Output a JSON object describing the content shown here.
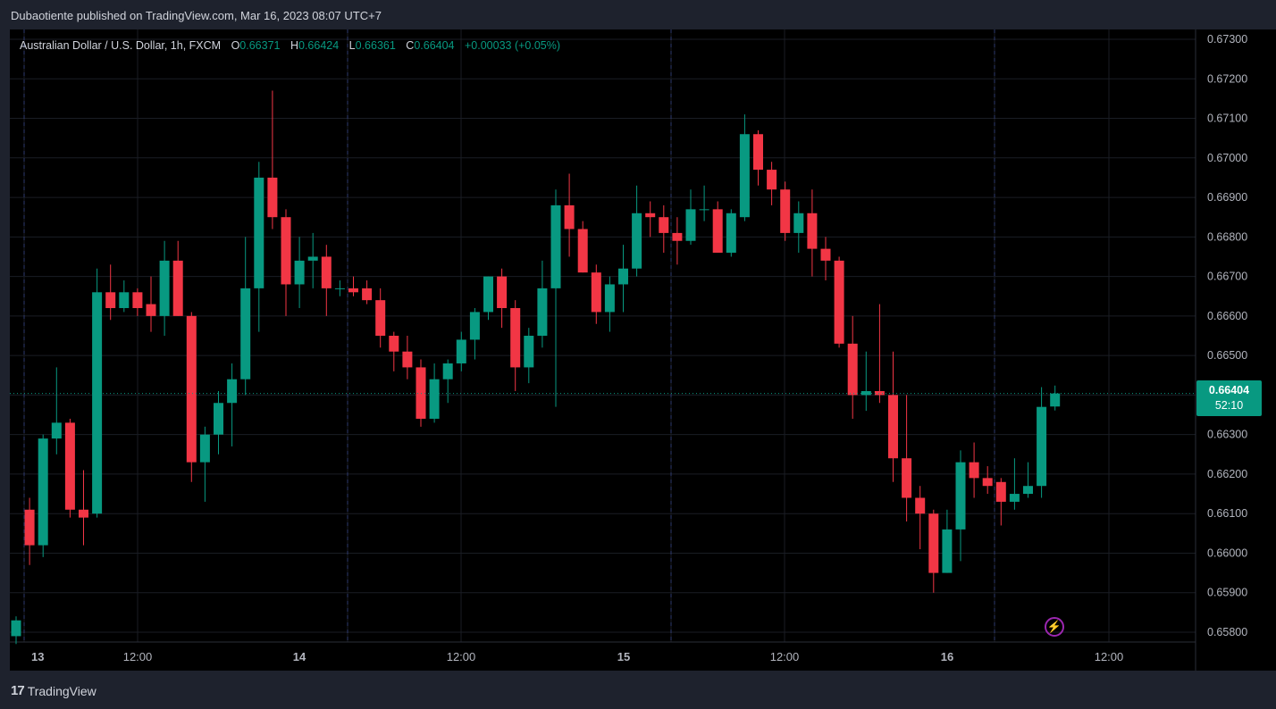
{
  "header": {
    "publisher_text": "Dubaotiente published on TradingView.com, Mar 16, 2023 08:07 UTC+7"
  },
  "legend": {
    "symbol": "Australian Dollar / U.S. Dollar, 1h, FXCM",
    "o_label": "O",
    "o": "0.66371",
    "h_label": "H",
    "h": "0.66424",
    "l_label": "L",
    "l": "0.66361",
    "c_label": "C",
    "c": "0.66404",
    "change": "+0.00033 (+0.05%)"
  },
  "price_tag": {
    "price": "0.66404",
    "countdown": "52:10"
  },
  "footer": {
    "brand": "TradingView",
    "logo_icon": "tradingview-logo-icon"
  },
  "colors": {
    "up": "#089981",
    "down": "#f23645",
    "grid": "#1a1d24",
    "text": "#b2b5be",
    "background": "#000000",
    "frame": "#1e222d"
  },
  "chart_data": {
    "type": "candlestick",
    "timeframe": "1h",
    "y_axis": {
      "ylim": [
        0.6577,
        0.6734
      ],
      "ticks": [
        "0.67300",
        "0.67200",
        "0.67100",
        "0.67000",
        "0.66900",
        "0.66800",
        "0.66700",
        "0.66600",
        "0.66500",
        "0.66400",
        "0.66300",
        "0.66200",
        "0.66100",
        "0.66000",
        "0.65900",
        "0.65800"
      ]
    },
    "x_axis": {
      "labels": [
        "13",
        "12:00",
        "14",
        "12:00",
        "15",
        "12:00",
        "16",
        "12:00"
      ]
    },
    "last_price": 0.66404,
    "candles": [
      {
        "o": 0.6579,
        "h": 0.6584,
        "l": 0.6577,
        "c": 0.6583
      },
      {
        "o": 0.6611,
        "h": 0.6614,
        "l": 0.6597,
        "c": 0.6602
      },
      {
        "o": 0.6602,
        "h": 0.663,
        "l": 0.6599,
        "c": 0.6629
      },
      {
        "o": 0.6629,
        "h": 0.6647,
        "l": 0.6625,
        "c": 0.6633
      },
      {
        "o": 0.6633,
        "h": 0.6634,
        "l": 0.6609,
        "c": 0.6611
      },
      {
        "o": 0.6611,
        "h": 0.6621,
        "l": 0.6602,
        "c": 0.6609
      },
      {
        "o": 0.661,
        "h": 0.6672,
        "l": 0.6609,
        "c": 0.6666
      },
      {
        "o": 0.6666,
        "h": 0.6673,
        "l": 0.6659,
        "c": 0.6662
      },
      {
        "o": 0.6662,
        "h": 0.6669,
        "l": 0.6661,
        "c": 0.6666
      },
      {
        "o": 0.6666,
        "h": 0.6667,
        "l": 0.666,
        "c": 0.6662
      },
      {
        "o": 0.6663,
        "h": 0.667,
        "l": 0.6656,
        "c": 0.666
      },
      {
        "o": 0.666,
        "h": 0.6679,
        "l": 0.6655,
        "c": 0.6674
      },
      {
        "o": 0.6674,
        "h": 0.6679,
        "l": 0.666,
        "c": 0.666
      },
      {
        "o": 0.666,
        "h": 0.6661,
        "l": 0.6618,
        "c": 0.6623
      },
      {
        "o": 0.6623,
        "h": 0.6632,
        "l": 0.6613,
        "c": 0.663
      },
      {
        "o": 0.663,
        "h": 0.6641,
        "l": 0.6625,
        "c": 0.6638
      },
      {
        "o": 0.6638,
        "h": 0.6648,
        "l": 0.6627,
        "c": 0.6644
      },
      {
        "o": 0.6644,
        "h": 0.668,
        "l": 0.664,
        "c": 0.6667
      },
      {
        "o": 0.6667,
        "h": 0.6699,
        "l": 0.6656,
        "c": 0.6695
      },
      {
        "o": 0.6695,
        "h": 0.6717,
        "l": 0.6682,
        "c": 0.6685
      },
      {
        "o": 0.6685,
        "h": 0.6687,
        "l": 0.666,
        "c": 0.6668
      },
      {
        "o": 0.6668,
        "h": 0.668,
        "l": 0.6662,
        "c": 0.6674
      },
      {
        "o": 0.6674,
        "h": 0.6681,
        "l": 0.6667,
        "c": 0.6675
      },
      {
        "o": 0.6675,
        "h": 0.6678,
        "l": 0.666,
        "c": 0.6667
      },
      {
        "o": 0.6667,
        "h": 0.6669,
        "l": 0.6665,
        "c": 0.6667
      },
      {
        "o": 0.6667,
        "h": 0.667,
        "l": 0.6665,
        "c": 0.6666
      },
      {
        "o": 0.6667,
        "h": 0.6669,
        "l": 0.6663,
        "c": 0.6664
      },
      {
        "o": 0.6664,
        "h": 0.6667,
        "l": 0.6652,
        "c": 0.6655
      },
      {
        "o": 0.6655,
        "h": 0.6656,
        "l": 0.6646,
        "c": 0.6651
      },
      {
        "o": 0.6651,
        "h": 0.6655,
        "l": 0.6644,
        "c": 0.6647
      },
      {
        "o": 0.6647,
        "h": 0.6649,
        "l": 0.6632,
        "c": 0.6634
      },
      {
        "o": 0.6634,
        "h": 0.6648,
        "l": 0.6633,
        "c": 0.6644
      },
      {
        "o": 0.6644,
        "h": 0.6649,
        "l": 0.6638,
        "c": 0.6648
      },
      {
        "o": 0.6648,
        "h": 0.6656,
        "l": 0.6646,
        "c": 0.6654
      },
      {
        "o": 0.6654,
        "h": 0.6662,
        "l": 0.6649,
        "c": 0.6661
      },
      {
        "o": 0.6661,
        "h": 0.667,
        "l": 0.6659,
        "c": 0.667
      },
      {
        "o": 0.667,
        "h": 0.6672,
        "l": 0.6657,
        "c": 0.6662
      },
      {
        "o": 0.6662,
        "h": 0.6664,
        "l": 0.6641,
        "c": 0.6647
      },
      {
        "o": 0.6647,
        "h": 0.6657,
        "l": 0.6643,
        "c": 0.6655
      },
      {
        "o": 0.6655,
        "h": 0.6674,
        "l": 0.6652,
        "c": 0.6667
      },
      {
        "o": 0.6667,
        "h": 0.6692,
        "l": 0.6637,
        "c": 0.6688
      },
      {
        "o": 0.6688,
        "h": 0.6696,
        "l": 0.6675,
        "c": 0.6682
      },
      {
        "o": 0.6682,
        "h": 0.6684,
        "l": 0.6671,
        "c": 0.6671
      },
      {
        "o": 0.6671,
        "h": 0.6673,
        "l": 0.6658,
        "c": 0.6661
      },
      {
        "o": 0.6661,
        "h": 0.667,
        "l": 0.6656,
        "c": 0.6668
      },
      {
        "o": 0.6668,
        "h": 0.6678,
        "l": 0.6661,
        "c": 0.6672
      },
      {
        "o": 0.6672,
        "h": 0.6693,
        "l": 0.667,
        "c": 0.6686
      },
      {
        "o": 0.6686,
        "h": 0.6689,
        "l": 0.668,
        "c": 0.6685
      },
      {
        "o": 0.6685,
        "h": 0.6688,
        "l": 0.6676,
        "c": 0.6681
      },
      {
        "o": 0.6681,
        "h": 0.6685,
        "l": 0.6673,
        "c": 0.6679
      },
      {
        "o": 0.6679,
        "h": 0.6692,
        "l": 0.6678,
        "c": 0.6687
      },
      {
        "o": 0.6687,
        "h": 0.6693,
        "l": 0.6684,
        "c": 0.6687
      },
      {
        "o": 0.6687,
        "h": 0.6689,
        "l": 0.6676,
        "c": 0.6676
      },
      {
        "o": 0.6676,
        "h": 0.6687,
        "l": 0.6675,
        "c": 0.6686
      },
      {
        "o": 0.6685,
        "h": 0.6711,
        "l": 0.6684,
        "c": 0.6706
      },
      {
        "o": 0.6706,
        "h": 0.6707,
        "l": 0.6693,
        "c": 0.6697
      },
      {
        "o": 0.6697,
        "h": 0.6699,
        "l": 0.6688,
        "c": 0.6692
      },
      {
        "o": 0.6692,
        "h": 0.6694,
        "l": 0.6679,
        "c": 0.6681
      },
      {
        "o": 0.6681,
        "h": 0.6689,
        "l": 0.6676,
        "c": 0.6686
      },
      {
        "o": 0.6686,
        "h": 0.6692,
        "l": 0.667,
        "c": 0.6677
      },
      {
        "o": 0.6677,
        "h": 0.668,
        "l": 0.6669,
        "c": 0.6674
      },
      {
        "o": 0.6674,
        "h": 0.6675,
        "l": 0.6652,
        "c": 0.6653
      },
      {
        "o": 0.6653,
        "h": 0.666,
        "l": 0.6634,
        "c": 0.664
      },
      {
        "o": 0.664,
        "h": 0.6651,
        "l": 0.6636,
        "c": 0.6641
      },
      {
        "o": 0.6641,
        "h": 0.6663,
        "l": 0.6638,
        "c": 0.664
      },
      {
        "o": 0.664,
        "h": 0.6651,
        "l": 0.6618,
        "c": 0.6624
      },
      {
        "o": 0.6624,
        "h": 0.664,
        "l": 0.6608,
        "c": 0.6614
      },
      {
        "o": 0.6614,
        "h": 0.6617,
        "l": 0.6601,
        "c": 0.661
      },
      {
        "o": 0.661,
        "h": 0.6611,
        "l": 0.659,
        "c": 0.6595
      },
      {
        "o": 0.6595,
        "h": 0.6611,
        "l": 0.6595,
        "c": 0.6606
      },
      {
        "o": 0.6606,
        "h": 0.6626,
        "l": 0.6598,
        "c": 0.6623
      },
      {
        "o": 0.6623,
        "h": 0.6628,
        "l": 0.6614,
        "c": 0.6619
      },
      {
        "o": 0.6619,
        "h": 0.6622,
        "l": 0.6615,
        "c": 0.6617
      },
      {
        "o": 0.6618,
        "h": 0.6619,
        "l": 0.6607,
        "c": 0.6613
      },
      {
        "o": 0.6613,
        "h": 0.6624,
        "l": 0.6611,
        "c": 0.6615
      },
      {
        "o": 0.6615,
        "h": 0.6623,
        "l": 0.6614,
        "c": 0.6617
      },
      {
        "o": 0.6617,
        "h": 0.6642,
        "l": 0.6614,
        "c": 0.6637
      },
      {
        "o": 0.66371,
        "h": 0.66424,
        "l": 0.66361,
        "c": 0.66404
      }
    ]
  }
}
